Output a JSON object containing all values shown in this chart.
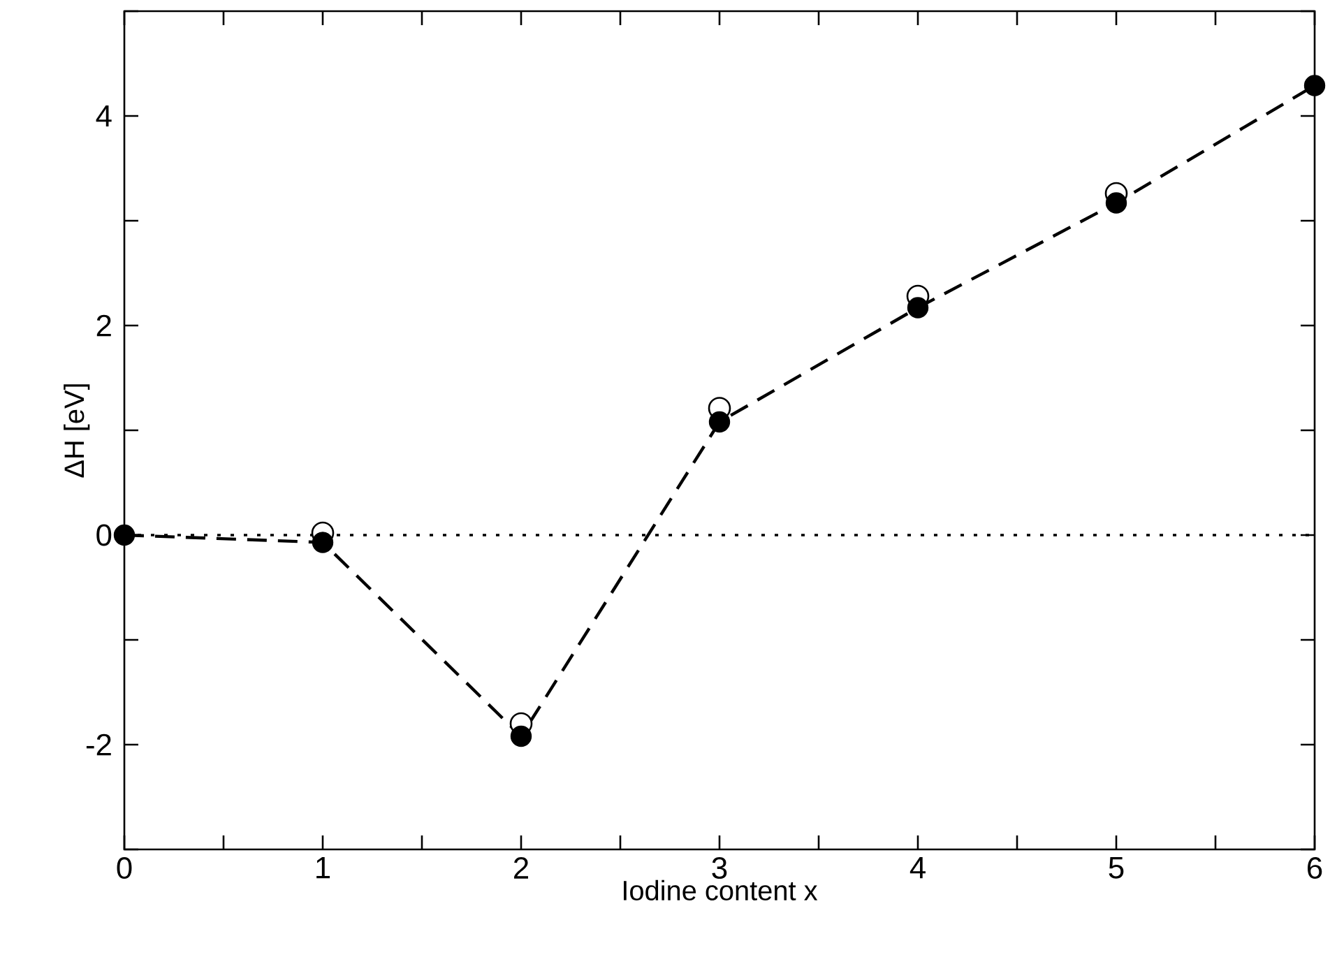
{
  "chart_data": {
    "type": "line",
    "xlabel": "Iodine content x",
    "ylabel": "ΔH [eV]",
    "x": [
      0,
      1,
      2,
      3,
      4,
      5,
      6
    ],
    "series": [
      {
        "type": "scatter",
        "color": "#000000",
        "marker": "circle",
        "values": [
          null,
          0.02,
          -1.8,
          1.21,
          2.28,
          3.26,
          null
        ]
      },
      {
        "color": "#000000",
        "marker": "circle",
        "line_style": "dashed",
        "values": [
          0,
          -0.07,
          -1.92,
          1.08,
          2.17,
          3.17,
          4.29
        ]
      }
    ],
    "xlim": [
      0,
      6
    ],
    "ylim": [
      -3,
      5
    ],
    "xticks": [
      0,
      {
        "value": 0.5,
        "label": null
      },
      1,
      {
        "value": 1.5,
        "label": null
      },
      2,
      {
        "value": 2.5,
        "label": null
      },
      3,
      {
        "value": 3.5,
        "label": null
      },
      4,
      {
        "value": 4.5,
        "label": null
      },
      5,
      {
        "value": 5.5,
        "label": null
      },
      6
    ],
    "yticks": [
      {
        "value": -3,
        "label": null
      },
      -2,
      {
        "value": -1,
        "label": null
      },
      0,
      {
        "value": 1,
        "label": null
      },
      2,
      {
        "value": 3,
        "label": null
      },
      4,
      {
        "value": 5,
        "label": null
      }
    ],
    "ref_lines": [
      {
        "axis": "y",
        "value": 0,
        "line_style": "dotted"
      }
    ],
    "grid": false
  }
}
